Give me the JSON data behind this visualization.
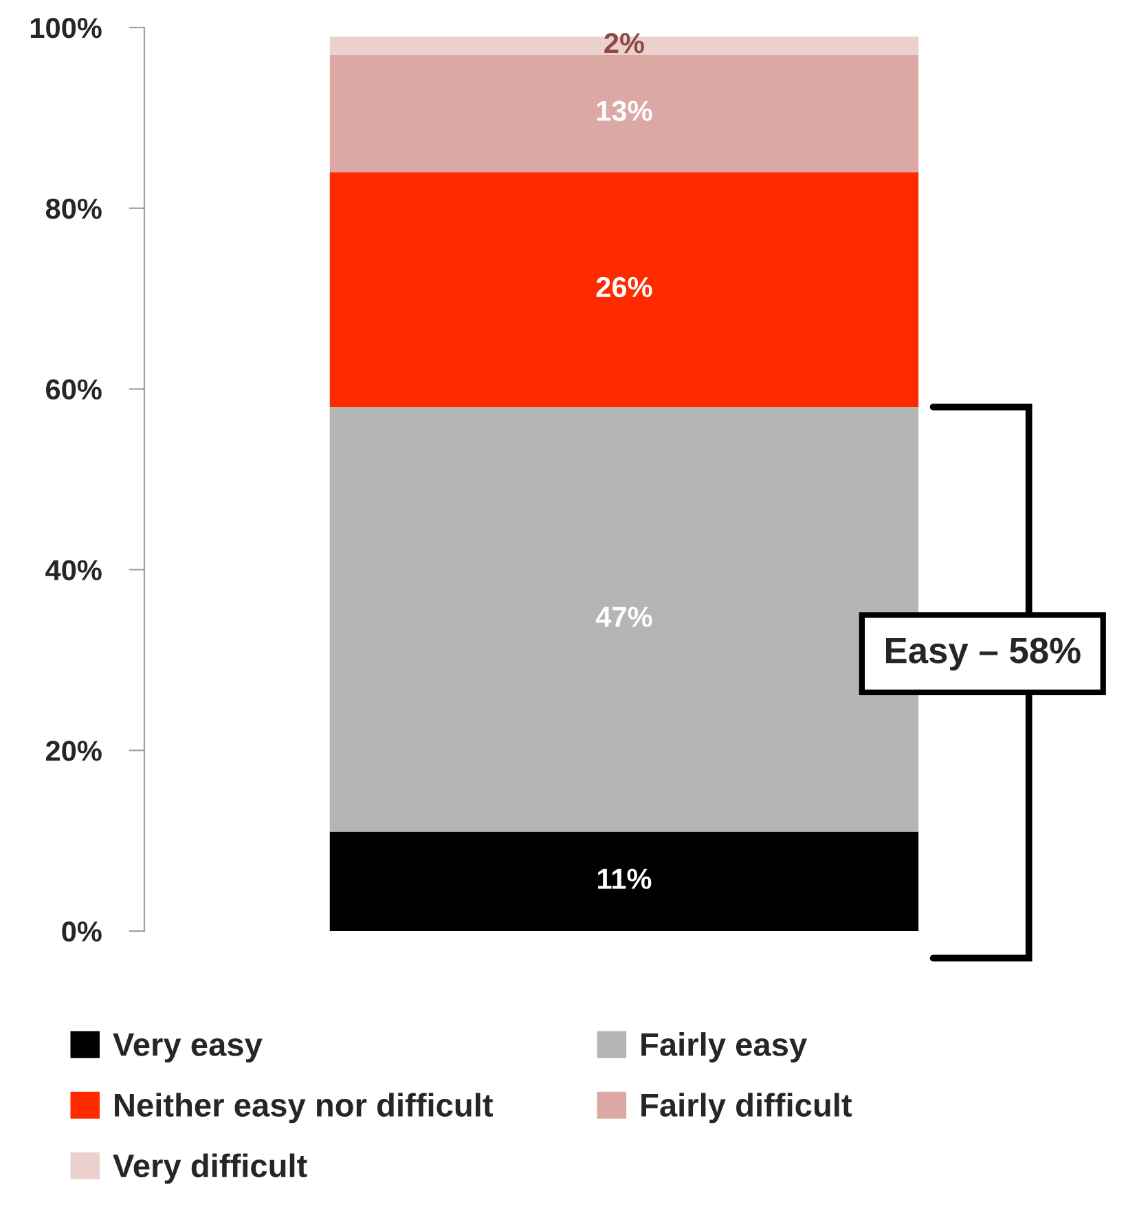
{
  "chart_data": {
    "type": "bar",
    "stacked": true,
    "categories": [
      null
    ],
    "series": [
      {
        "name": "Very easy",
        "color": "#000000",
        "values": [
          11
        ],
        "value_labels": [
          "11%"
        ]
      },
      {
        "name": "Fairly easy",
        "color": "#b5b5b5",
        "values": [
          47
        ],
        "value_labels": [
          "47%"
        ]
      },
      {
        "name": "Neither easy nor difficult",
        "color": "#ff2a00",
        "values": [
          26
        ],
        "value_labels": [
          "26%"
        ]
      },
      {
        "name": "Fairly difficult",
        "color": "#dba8a3",
        "values": [
          13
        ],
        "value_labels": [
          "13%"
        ]
      },
      {
        "name": "Very difficult",
        "color": "#ecd0cd",
        "values": [
          2
        ],
        "value_labels": [
          "2%"
        ]
      }
    ],
    "ylim": [
      0,
      100
    ],
    "yticks": [
      {
        "value": 0,
        "label": "0%"
      },
      {
        "value": 20,
        "label": "20%"
      },
      {
        "value": 40,
        "label": "40%"
      },
      {
        "value": 60,
        "label": "60%"
      },
      {
        "value": 80,
        "label": "80%"
      },
      {
        "value": 100,
        "label": "100%"
      }
    ],
    "annotations": [
      "Easy – 58%"
    ],
    "grid": false,
    "legend": "bottom",
    "tick_labels": "y"
  }
}
